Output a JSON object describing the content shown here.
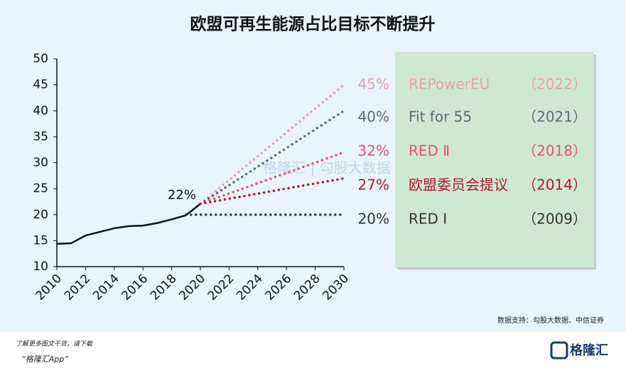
{
  "chart_data": {
    "type": "line",
    "title": "欧盟可再生能源占比目标不断提升",
    "xlim": [
      2010,
      2030
    ],
    "xticks": [
      2010,
      2012,
      2014,
      2016,
      2018,
      2020,
      2022,
      2024,
      2026,
      2028,
      2030
    ],
    "ylim": [
      10,
      50
    ],
    "yticks": [
      10,
      15,
      20,
      25,
      30,
      35,
      40,
      45,
      50
    ],
    "series": [
      {
        "x": [
          2010,
          2011,
          2012,
          2013,
          2014,
          2015,
          2016,
          2017,
          2018,
          2019,
          2020
        ],
        "values": [
          14.4,
          14.5,
          16.0,
          16.7,
          17.4,
          17.8,
          17.9,
          18.4,
          19.1,
          19.9,
          22.1
        ],
        "value_labels": [
          null,
          null,
          null,
          null,
          null,
          null,
          null,
          null,
          null,
          null,
          "22%"
        ],
        "color": "#111111",
        "style": "solid"
      },
      {
        "name": "REPowerEU",
        "note": "（2022）",
        "x": [
          2020,
          2030
        ],
        "values": [
          22.1,
          45
        ],
        "value_labels": [
          null,
          "45%"
        ],
        "color": "#e8a3ab",
        "style": "dotted"
      },
      {
        "name": "Fit for 55",
        "note": "（2021）",
        "x": [
          2020,
          2030
        ],
        "values": [
          22.1,
          40
        ],
        "value_labels": [
          null,
          "40%"
        ],
        "color": "#5d6b78",
        "style": "dotted"
      },
      {
        "name": "RED Ⅱ",
        "note": "（2018）",
        "x": [
          2020,
          2030
        ],
        "values": [
          22.1,
          32
        ],
        "value_labels": [
          null,
          "32%"
        ],
        "color": "#e2546c",
        "style": "dotted"
      },
      {
        "name": "欧盟委员会提议",
        "note": "（2014）",
        "x": [
          2020,
          2030
        ],
        "values": [
          22.1,
          27
        ],
        "value_labels": [
          null,
          "27%"
        ],
        "color": "#b3172b",
        "style": "dotted"
      },
      {
        "name": "RED Ⅰ",
        "note": "（2009）",
        "x": [
          2019,
          2030
        ],
        "values": [
          20,
          20
        ],
        "value_labels": [
          null,
          "20%"
        ],
        "color": "#333333",
        "style": "dotted"
      }
    ],
    "watermark": "格隆汇 | 勾股大数据",
    "source": "数据支持：勾股大数据、中信证券"
  },
  "footer": {
    "line1": "了解更多图文干货，请下载",
    "line2": "“格隆汇App”",
    "logo": "格隆汇"
  }
}
